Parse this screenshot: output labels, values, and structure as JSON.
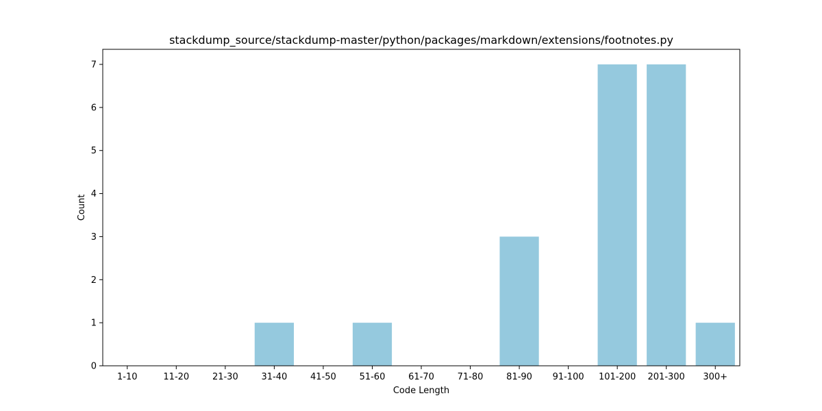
{
  "chart_data": {
    "type": "bar",
    "title": "stackdump_source/stackdump-master/python/packages/markdown/extensions/footnotes.py",
    "xlabel": "Code Length",
    "ylabel": "Count",
    "categories": [
      "1-10",
      "11-20",
      "21-30",
      "31-40",
      "41-50",
      "51-60",
      "61-70",
      "71-80",
      "81-90",
      "91-100",
      "101-200",
      "201-300",
      "300+"
    ],
    "values": [
      0,
      0,
      0,
      1,
      0,
      1,
      0,
      0,
      3,
      0,
      7,
      7,
      1
    ],
    "ylim": [
      0,
      7.35
    ],
    "yticks": [
      0,
      1,
      2,
      3,
      4,
      5,
      6,
      7
    ],
    "grid": false,
    "bar_color": "#95c9de"
  }
}
